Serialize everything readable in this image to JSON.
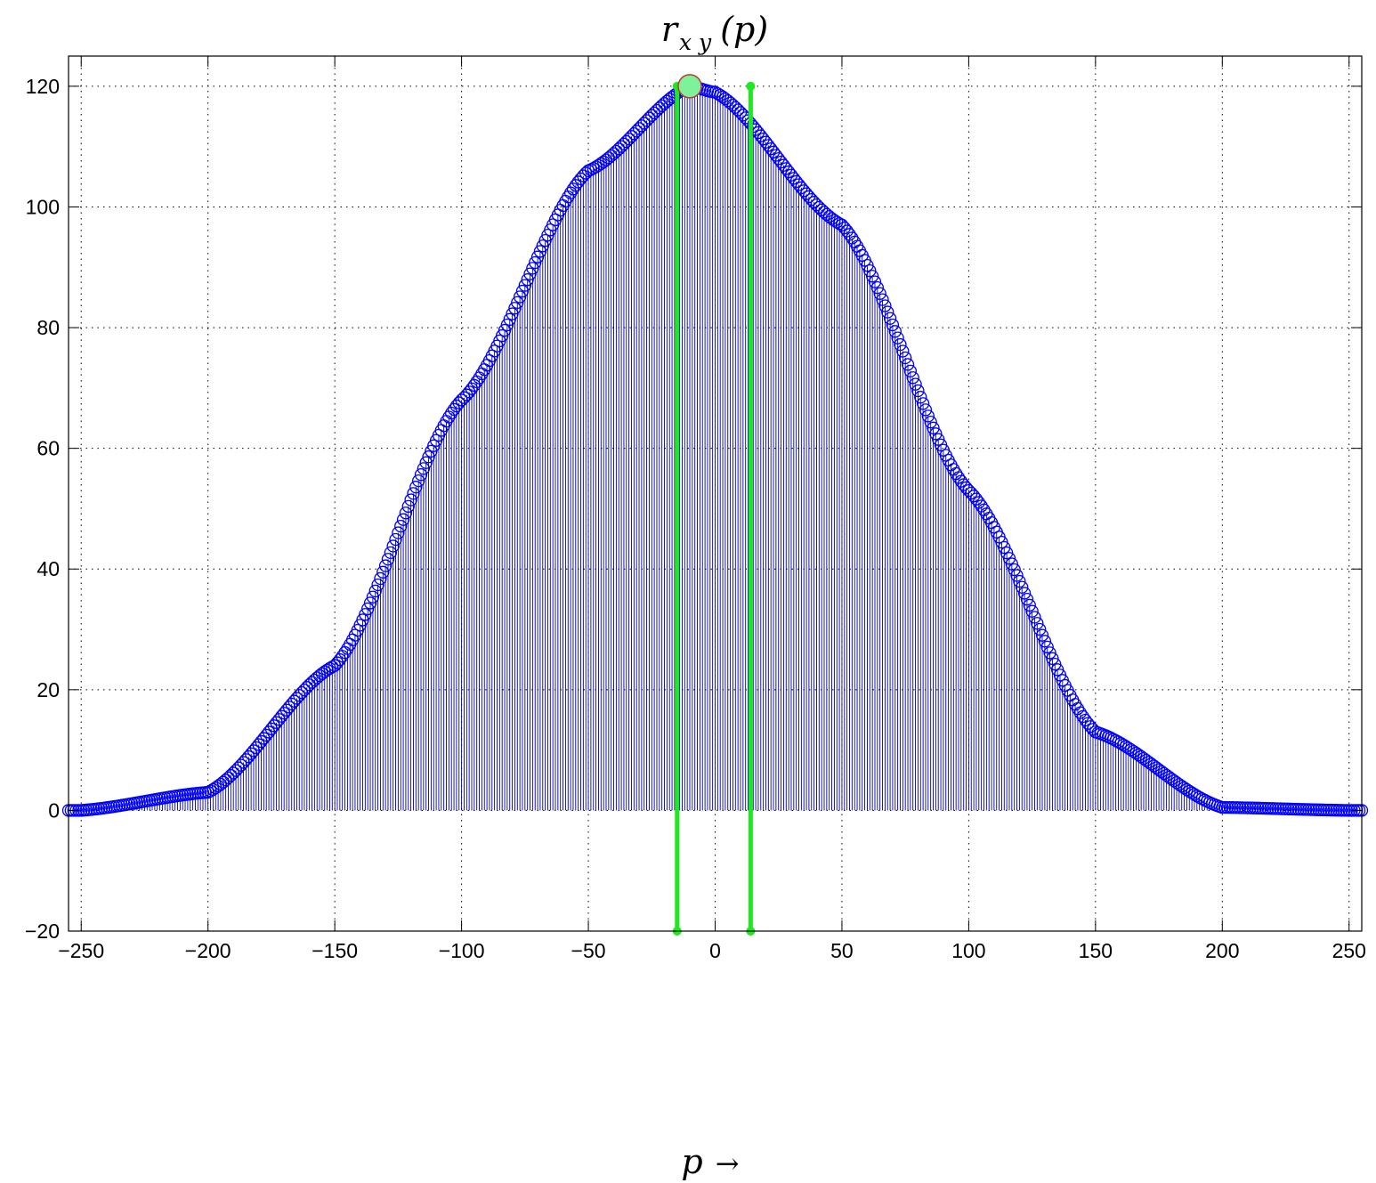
{
  "chart_data": {
    "type": "stem",
    "title": {
      "base": "r",
      "subscript": "x y",
      "arg": "(p)"
    },
    "xlabel": {
      "var": "p",
      "arrow": "→"
    },
    "ylabel": "",
    "xlim": [
      -255,
      255
    ],
    "ylim": [
      -20,
      125
    ],
    "grid": true,
    "xticks": [
      -250,
      -200,
      -150,
      -100,
      -50,
      0,
      50,
      100,
      150,
      200,
      250
    ],
    "yticks": [
      -20,
      0,
      20,
      40,
      60,
      80,
      100,
      120
    ],
    "xtick_labels": [
      "−250",
      "−200",
      "−150",
      "−100",
      "−50",
      "0",
      "50",
      "100",
      "150",
      "200",
      "250"
    ],
    "ytick_labels": [
      "−20",
      "0",
      "20",
      "40",
      "60",
      "80",
      "100",
      "120"
    ],
    "series": [
      {
        "style": "stem",
        "color": "#0000ff",
        "x_range": [
          -255,
          255
        ],
        "shape": "bell",
        "peak_x": -10,
        "peak_y": 120,
        "support": [
          -230,
          205
        ],
        "key_points": [
          {
            "x": -250,
            "y": 0
          },
          {
            "x": -200,
            "y": 3
          },
          {
            "x": -150,
            "y": 24
          },
          {
            "x": -100,
            "y": 68
          },
          {
            "x": -50,
            "y": 106
          },
          {
            "x": -10,
            "y": 120
          },
          {
            "x": 0,
            "y": 119
          },
          {
            "x": 50,
            "y": 97
          },
          {
            "x": 100,
            "y": 53
          },
          {
            "x": 150,
            "y": 13
          },
          {
            "x": 200,
            "y": 0.5
          },
          {
            "x": 250,
            "y": 0
          }
        ]
      }
    ],
    "markers": [
      {
        "name": "maximum",
        "x": -10,
        "y": 120,
        "color": "#7ef29b",
        "edge": "#c0392b"
      }
    ],
    "vertical_lines": [
      {
        "x": -15,
        "y0": -20,
        "y1": 120,
        "color": "#1ee81e"
      },
      {
        "x": 14,
        "y0": -20,
        "y1": 120,
        "color": "#1ee81e"
      }
    ]
  }
}
